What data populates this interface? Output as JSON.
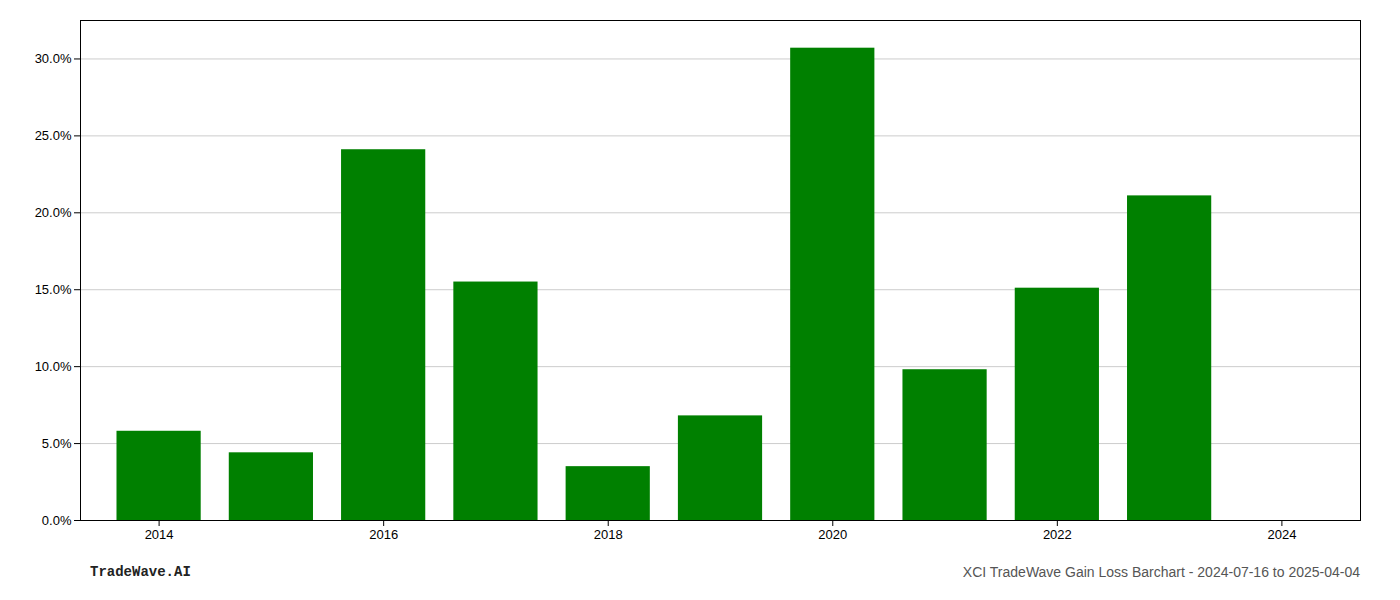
{
  "chart_data": {
    "type": "bar",
    "x": [
      2014,
      2015,
      2016,
      2017,
      2018,
      2019,
      2020,
      2021,
      2022,
      2023
    ],
    "values": [
      0.058,
      0.044,
      0.241,
      0.155,
      0.035,
      0.068,
      0.307,
      0.098,
      0.151,
      0.211
    ],
    "color": "#008000",
    "xlim": [
      2013.3,
      2024.7
    ],
    "xticks": [
      2014,
      2016,
      2018,
      2020,
      2022,
      2024
    ],
    "ylim": [
      0,
      0.325
    ],
    "yticks": [
      {
        "value": 0.0,
        "label": "0.0%"
      },
      {
        "value": 0.05,
        "label": "5.0%"
      },
      {
        "value": 0.1,
        "label": "10.0%"
      },
      {
        "value": 0.15,
        "label": "15.0%"
      },
      {
        "value": 0.2,
        "label": "20.0%"
      },
      {
        "value": 0.25,
        "label": "25.0%"
      },
      {
        "value": 0.3,
        "label": "30.0%"
      }
    ],
    "grid": true,
    "annotations": [
      "TradeWave.AI",
      "XCI TradeWave Gain Loss Barchart - 2024-07-16 to 2025-04-04"
    ]
  }
}
